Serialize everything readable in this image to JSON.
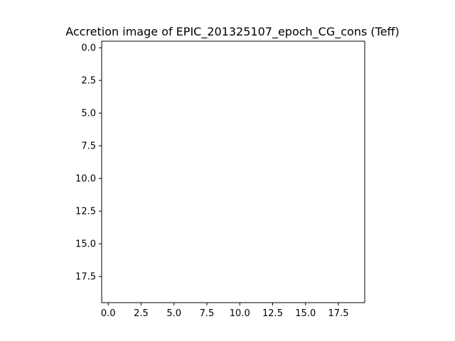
{
  "chart_data": {
    "type": "heatmap",
    "title": "Accretion image of EPIC_201325107_epoch_CG_cons (Teff)",
    "xlabel": "",
    "ylabel": "",
    "xlim": [
      -0.5,
      19.5
    ],
    "ylim": [
      19.5,
      -0.5
    ],
    "y_inverted": true,
    "grid": false,
    "legend": null,
    "x_ticks": [
      0.0,
      2.5,
      5.0,
      7.5,
      10.0,
      12.5,
      15.0,
      17.5
    ],
    "x_tick_labels": [
      "0.0",
      "2.5",
      "5.0",
      "7.5",
      "10.0",
      "12.5",
      "15.0",
      "17.5"
    ],
    "y_ticks": [
      0.0,
      2.5,
      5.0,
      7.5,
      10.0,
      12.5,
      15.0,
      17.5
    ],
    "y_tick_labels": [
      "0.0",
      "2.5",
      "5.0",
      "7.5",
      "10.0",
      "12.5",
      "15.0",
      "17.5"
    ],
    "image_data": "blank (no visible pixels)",
    "colors": {
      "axes": "#000000",
      "background": "#ffffff"
    }
  }
}
